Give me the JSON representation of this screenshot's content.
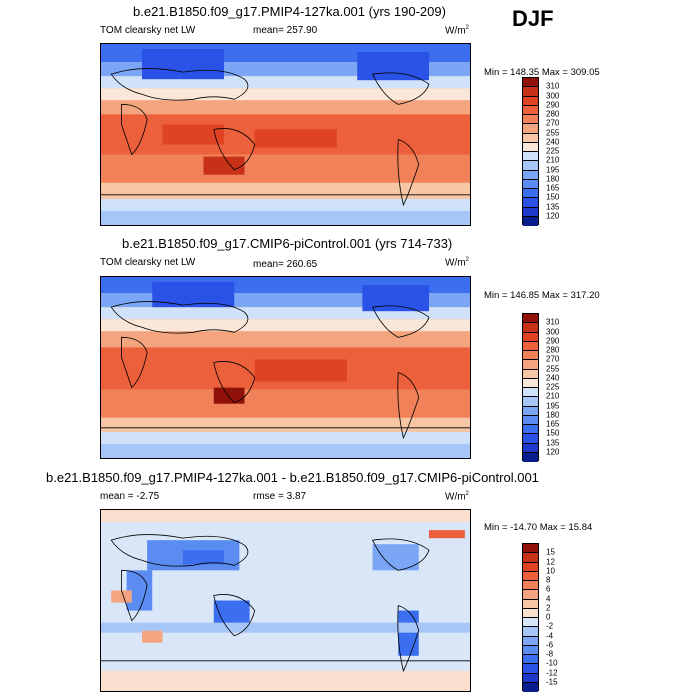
{
  "season": "DJF",
  "colors": {
    "mean_scale": [
      "#0a1d8c",
      "#1f39cc",
      "#2b52e6",
      "#3b6ff0",
      "#5a8cf2",
      "#7aa6f5",
      "#a6c6f7",
      "#cfe2f9",
      "#fae7d8",
      "#f7c6a4",
      "#f4a57f",
      "#f08158",
      "#ec603c",
      "#e04324",
      "#c73117",
      "#8f1109"
    ],
    "diff_scale": [
      "#0a1d8c",
      "#1f39cc",
      "#2b52e6",
      "#3b6ff0",
      "#5a8cf2",
      "#7aa6f5",
      "#a6c6f7",
      "#d9e6f7",
      "#fbe0cf",
      "#f7c6a4",
      "#f4a57f",
      "#f08158",
      "#ec603c",
      "#e04324",
      "#c73117",
      "#8f1109"
    ]
  },
  "panels": [
    {
      "title": "b.e21.B1850.f09_g17.PMIP4-127ka.001 (yrs 190-209)",
      "variable": "TOM clearsky net LW",
      "stat": "mean=",
      "stat_value": "257.90",
      "units": "W/m",
      "units_sup": "2",
      "minmax": "Min = 148.35 Max = 309.05",
      "colorbar_labels": [
        "310",
        "300",
        "290",
        "280",
        "270",
        "255",
        "240",
        "225",
        "210",
        "195",
        "180",
        "165",
        "150",
        "135",
        "120"
      ],
      "scale": "mean"
    },
    {
      "title": "b.e21.B1850.f09_g17.CMIP6-piControl.001 (yrs 714-733)",
      "variable": "TOM clearsky net LW",
      "stat": "mean=",
      "stat_value": "260.65",
      "units": "W/m",
      "units_sup": "2",
      "minmax": "Min = 146.85 Max = 317.20",
      "colorbar_labels": [
        "310",
        "300",
        "290",
        "280",
        "270",
        "255",
        "240",
        "225",
        "210",
        "195",
        "180",
        "165",
        "150",
        "135",
        "120"
      ],
      "scale": "mean"
    },
    {
      "title": "b.e21.B1850.f09_g17.PMIP4-127ka.001 - b.e21.B1850.f09_g17.CMIP6-piControl.001",
      "variable": "mean =  -2.75",
      "stat": "rmse =",
      "stat_value": "3.87",
      "units": "W/m",
      "units_sup": "2",
      "minmax": "Min = -14.70 Max =  15.84",
      "colorbar_labels": [
        "15",
        "12",
        "10",
        "8",
        "6",
        "4",
        "2",
        "0",
        "-2",
        "-4",
        "-6",
        "-8",
        "-10",
        "-12",
        "-15"
      ],
      "scale": "diff"
    }
  ]
}
